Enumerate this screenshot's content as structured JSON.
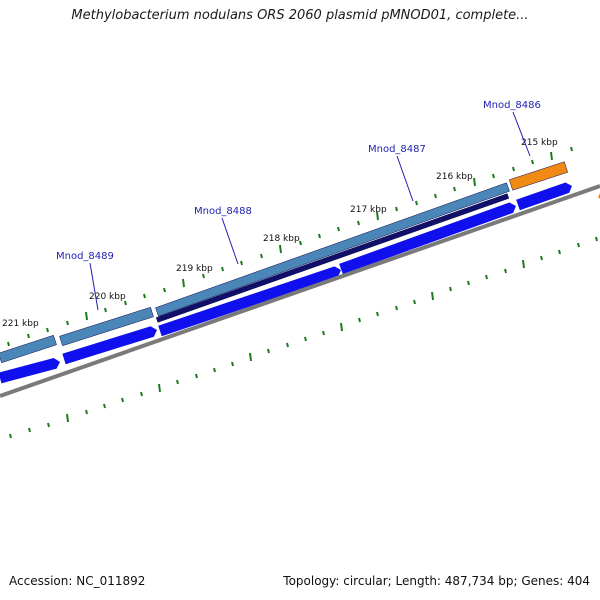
{
  "title": "Methylobacterium nodulans ORS 2060 plasmid pMNOD01, complete...",
  "footer": {
    "accession": "Accession: NC_011892",
    "stats": "Topology: circular; Length: 487,734 bp; Genes: 404"
  },
  "colors": {
    "backbone": "#7a7a7a",
    "tick": "#1f7a1f",
    "cds_forward": "#1010ee",
    "gene_bar": "#4a86b8",
    "gene_bar_dark": "#10106a",
    "gene_highlight": "#f08a14",
    "gene_label": "#1f1fb0"
  },
  "tick_labels": [
    "221 kbp",
    "220 kbp",
    "219 kbp",
    "218 kbp",
    "217 kbp",
    "216 kbp",
    "215 kbp"
  ],
  "genes": [
    {
      "name": "Mnod_8489"
    },
    {
      "name": "Mnod_8488"
    },
    {
      "name": "Mnod_8487"
    },
    {
      "name": "Mnod_8486"
    }
  ]
}
